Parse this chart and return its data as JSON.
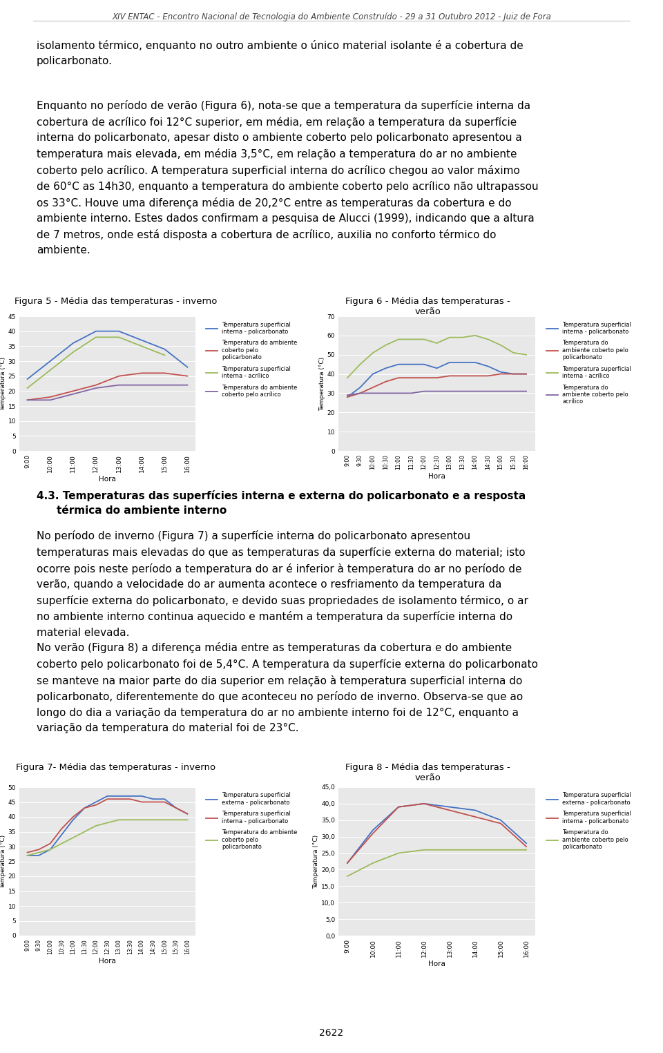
{
  "header": "XIV ENTAC - Encontro Nacional de Tecnologia do Ambiente Construído - 29 a 31 Outubro 2012 - Juiz de Fora",
  "paragraph1": "isolamento térmico, enquanto no outro ambiente o único material isolante é a cobertura de\npolicarbonato.",
  "paragraph2": "Enquanto no período de verão (Figura 6), nota-se que a temperatura da superfície interna da\ncobertura de acrílico foi 12°C superior, em média, em relação a temperatura da superfície\ninterna do policarbonato, apesar disto o ambiente coberto pelo policarbonato apresentou a\ntemperatura mais elevada, em média 3,5°C, em relação a temperatura do ar no ambiente\ncoberto pelo acrílico. A temperatura superficial interna do acrílico chegou ao valor máximo\nde 60°C as 14h30, enquanto a temperatura do ambiente coberto pelo acrílico não ultrapassou\nos 33°C. Houve uma diferença média de 20,2°C entre as temperaturas da cobertura e do\nambiente interno. Estes dados confirmam a pesquisa de Alucci (1999), indicando que a altura\nde 7 metros, onde está disposta a cobertura de acrílico, auxilia no conforto térmico do\nambiente.",
  "fig5_title": "Figura 5 - Média das temperaturas - inverno",
  "fig6_title": "Figura 6 - Média das temperaturas -\nverão",
  "fig7_title": "Figura 7- Média das temperaturas - inverno",
  "fig8_title": "Figura 8 - Média das temperaturas -\nverão",
  "section_title_line1": "4.3. Temperaturas das superfícies interna e externa do policarbonato e a resposta",
  "section_title_line2": "térmica do ambiente interno",
  "section_body": "No período de inverno (Figura 7) a superfície interna do policarbonato apresentou\ntemperaturas mais elevadas do que as temperaturas da superfície externa do material; isto\nocorre pois neste período a temperatura do ar é inferior à temperatura do ar no período de\nverão, quando a velocidade do ar aumenta acontece o resfriamento da temperatura da\nsuperfície externa do policarbonato, e devido suas propriedades de isolamento térmico, o ar\nno ambiente interno continua aquecido e mantém a temperatura da superfície interna do\nmaterial elevada.",
  "section_body2": "No verão (Figura 8) a diferença média entre as temperaturas da cobertura e do ambiente\ncoberto pelo policarbonato foi de 5,4°C. A temperatura da superfície externa do policarbonato\nse manteve na maior parte do dia superior em relação à temperatura superficial interna do\npolicarbonato, diferentemente do que aconteceu no período de inverno. Observa-se que ao\nlongo do dia a variação da temperatura do ar no ambiente interno foi de 12°C, enquanto a\nvariação da temperatura do material foi de 23°C.",
  "page_number": "2622",
  "fig5": {
    "hours": [
      "9:00",
      "10:00",
      "11:00",
      "12:00",
      "13:00",
      "14:00",
      "15:00",
      "16:00"
    ],
    "series": {
      "temp_sup_int_poli": [
        24,
        30,
        36,
        40,
        40,
        37,
        34,
        28
      ],
      "temp_amb_poli": [
        17,
        18,
        20,
        22,
        25,
        26,
        26,
        25
      ],
      "temp_sup_int_acri": [
        21,
        27,
        33,
        38,
        38,
        35,
        32,
        null
      ],
      "temp_amb_acri": [
        17,
        17,
        19,
        21,
        22,
        22,
        22,
        22
      ]
    },
    "colors": {
      "temp_sup_int_poli": "#4472C4",
      "temp_amb_poli": "#C0504D",
      "temp_sup_int_acri": "#9BBB59",
      "temp_amb_acri": "#8064A2"
    },
    "ylim": [
      0,
      45
    ],
    "yticks": [
      0,
      5,
      10,
      15,
      20,
      25,
      30,
      35,
      40,
      45
    ],
    "ylabel": "Temperatura (°C)",
    "xlabel": "Hora",
    "legend": [
      "Temperatura superficial\ninterna - policarbonato",
      "Temperatura do ambiente\ncoberto pelo\npolicarbonato",
      "Temperatura superficial\ninterna - acrílico",
      "Temperatura do ambiente\ncoberto pelo acrílico"
    ]
  },
  "fig6": {
    "hours": [
      "9:00",
      "9:30",
      "10:00",
      "10:30",
      "11:00",
      "11:30",
      "12:00",
      "12:30",
      "13:00",
      "13:30",
      "14:00",
      "14:30",
      "15:00",
      "15:30",
      "16:00"
    ],
    "series": {
      "temp_sup_int_poli": [
        28,
        33,
        40,
        43,
        45,
        45,
        45,
        43,
        46,
        46,
        46,
        44,
        41,
        40,
        40
      ],
      "temp_amb_poli": [
        28,
        30,
        33,
        36,
        38,
        38,
        38,
        38,
        39,
        39,
        39,
        39,
        40,
        40,
        40
      ],
      "temp_sup_int_acri": [
        38,
        45,
        51,
        55,
        58,
        58,
        58,
        56,
        59,
        59,
        60,
        58,
        55,
        51,
        50
      ],
      "temp_amb_acri": [
        29,
        30,
        30,
        30,
        30,
        30,
        31,
        31,
        31,
        31,
        31,
        31,
        31,
        31,
        31
      ]
    },
    "colors": {
      "temp_sup_int_poli": "#4472C4",
      "temp_amb_poli": "#C0504D",
      "temp_sup_int_acri": "#9BBB59",
      "temp_amb_acri": "#8064A2"
    },
    "ylim": [
      0,
      70
    ],
    "yticks": [
      0,
      10,
      20,
      30,
      40,
      50,
      60,
      70
    ],
    "ylabel": "Temperatura (°C)",
    "xlabel": "Hora",
    "legend": [
      "Temperatura superficial\ninterna - policarbonato",
      "Temperatura do\nambiente coberto pelo\npolicarbonato",
      "Temperatura superficial\ninterna - acrílico",
      "Temperatura do\nambiente coberto pelo\nacrílico"
    ]
  },
  "fig7": {
    "hours": [
      "9:00",
      "9:30",
      "10:00",
      "10:30",
      "11:00",
      "11:30",
      "12:00",
      "12:30",
      "13:00",
      "13:30",
      "14:00",
      "14:30",
      "15:00",
      "15:30",
      "16:00"
    ],
    "series": {
      "temp_sup_ext_poli": [
        27,
        27,
        29,
        34,
        39,
        43,
        45,
        47,
        47,
        47,
        47,
        46,
        46,
        43,
        41
      ],
      "temp_sup_int_poli": [
        28,
        29,
        31,
        36,
        40,
        43,
        44,
        46,
        46,
        46,
        45,
        45,
        45,
        43,
        41
      ],
      "temp_amb_poli": [
        27,
        28,
        29,
        31,
        33,
        35,
        37,
        38,
        39,
        39,
        39,
        39,
        39,
        39,
        39
      ]
    },
    "colors": {
      "temp_sup_ext_poli": "#4472C4",
      "temp_sup_int_poli": "#C0504D",
      "temp_amb_poli": "#9BBB59"
    },
    "ylim": [
      0,
      50
    ],
    "yticks": [
      0,
      5,
      10,
      15,
      20,
      25,
      30,
      35,
      40,
      45,
      50
    ],
    "ylabel": "Temperatura (°C)",
    "xlabel": "Hora",
    "legend": [
      "Temperatura superficial\nexterna - policarbonato",
      "Temperatura superficial\ninterna - policarbonato",
      "Temperatura do ambiente\ncoberto pelo\npolicarbonato"
    ]
  },
  "fig8": {
    "hours": [
      "9:00",
      "10:00",
      "11:00",
      "12:00",
      "13:00",
      "14:00",
      "15:00",
      "16:00"
    ],
    "series": {
      "temp_sup_ext_poli": [
        22,
        32,
        39,
        40,
        39,
        38,
        35,
        28
      ],
      "temp_sup_int_poli": [
        22,
        31,
        39,
        40,
        38,
        36,
        34,
        27
      ],
      "temp_amb_poli": [
        18,
        22,
        25,
        26,
        26,
        26,
        26,
        26
      ]
    },
    "colors": {
      "temp_sup_ext_poli": "#4472C4",
      "temp_sup_int_poli": "#C0504D",
      "temp_amb_poli": "#9BBB59"
    },
    "ylim_labels": [
      "0,0",
      "5,0",
      "10,0",
      "15,0",
      "20,0",
      "25,0",
      "30,0",
      "35,0",
      "40,0",
      "45,0"
    ],
    "ylim": [
      0,
      45
    ],
    "yticks": [
      0,
      5,
      10,
      15,
      20,
      25,
      30,
      35,
      40,
      45
    ],
    "ylabel": "Temperatura (°C)",
    "xlabel": "Hora",
    "legend": [
      "Temperatura superficial\nexterna - policarbonato",
      "Temperatura superficial\ninterna - policarbonato",
      "Temperatura do\nambiente coberto pelo\npolicarbonato"
    ]
  }
}
